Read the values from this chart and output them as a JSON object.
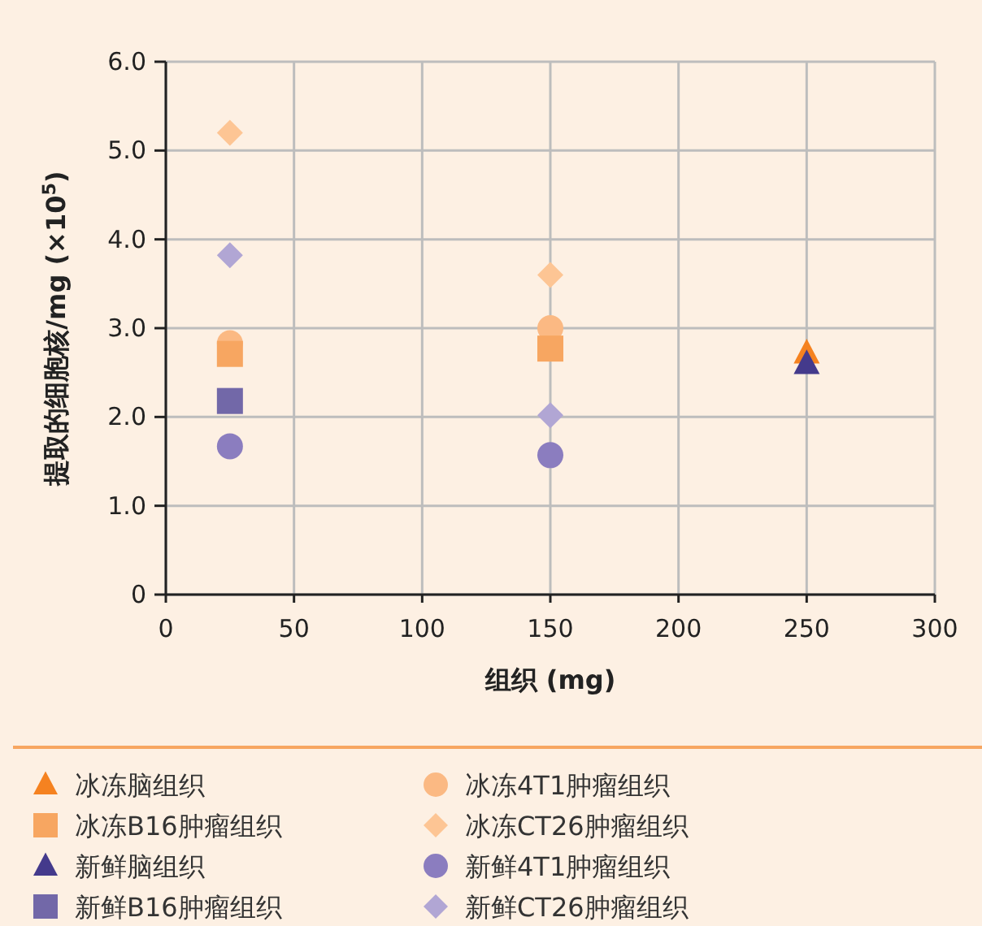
{
  "chart_data": {
    "type": "scatter",
    "xlabel": "组织 (mg)",
    "ylabel": "提取的细胞核/mg (×10$^{5}$)",
    "xlim": [
      0,
      300
    ],
    "xticks": [
      0,
      50,
      100,
      150,
      200,
      250,
      300
    ],
    "ylim": [
      0,
      6
    ],
    "yticks": [
      {
        "value": 0,
        "label": "0"
      },
      {
        "value": 1,
        "label": "1.0"
      },
      {
        "value": 2,
        "label": "2.0"
      },
      {
        "value": 3,
        "label": "3.0"
      },
      {
        "value": 4,
        "label": "4.0"
      },
      {
        "value": 5,
        "label": "5.0"
      },
      {
        "value": 6,
        "label": "6.0"
      }
    ],
    "grid": true,
    "legend": "bottom",
    "series": [
      {
        "name": "冰冻脑组织",
        "color": "#f58220",
        "marker": "triangle",
        "x": [
          250
        ],
        "values": [
          2.72
        ]
      },
      {
        "name": "冰冻B16肿瘤组织",
        "color": "#f7a661",
        "marker": "square",
        "x": [
          25,
          150
        ],
        "values": [
          2.71,
          2.77
        ]
      },
      {
        "name": "新鲜脑组织",
        "color": "#443a8c",
        "marker": "triangle",
        "x": [
          250
        ],
        "values": [
          2.6
        ]
      },
      {
        "name": "新鲜B16肿瘤组织",
        "color": "#7268a8",
        "marker": "square",
        "x": [
          25
        ],
        "values": [
          2.18
        ]
      },
      {
        "name": "冰冻4T1肿瘤组织",
        "color": "#fbb983",
        "marker": "circle",
        "x": [
          25,
          150
        ],
        "values": [
          2.83,
          3.0
        ]
      },
      {
        "name": "冰冻CT26肿瘤组织",
        "color": "#fdc594",
        "marker": "diamond",
        "x": [
          25,
          150
        ],
        "values": [
          5.2,
          3.6
        ]
      },
      {
        "name": "新鲜4T1肿瘤组织",
        "color": "#8b7dbf",
        "marker": "circle",
        "x": [
          25,
          150
        ],
        "values": [
          1.67,
          1.57
        ]
      },
      {
        "name": "新鲜CT26肿瘤组织",
        "color": "#b1a6d4",
        "marker": "diamond",
        "x": [
          25,
          150
        ],
        "values": [
          3.82,
          2.02
        ]
      }
    ]
  }
}
